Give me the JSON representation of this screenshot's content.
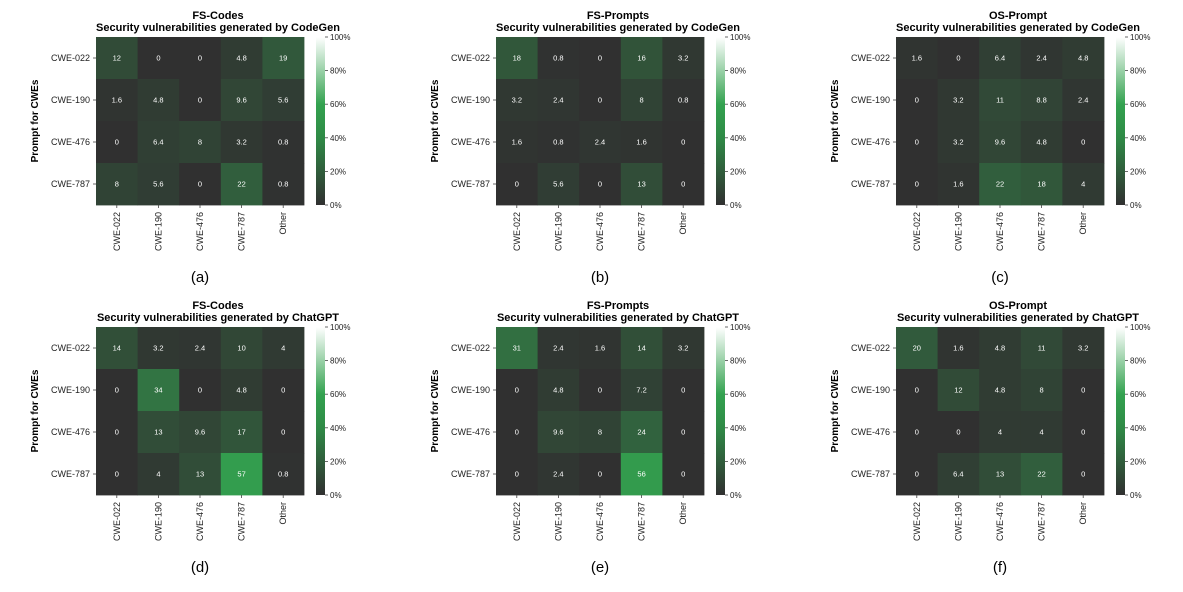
{
  "chart_data": [
    {
      "type": "heatmap",
      "caption": "(a)",
      "title": "FS-Codes",
      "subtitle": "Security vulnerabilities generated by CodeGen",
      "ylabel": "Prompt for CWEs",
      "rows": [
        "CWE-022",
        "CWE-190",
        "CWE-476",
        "CWE-787"
      ],
      "cols": [
        "CWE-022",
        "CWE-190",
        "CWE-476",
        "CWE-787",
        "Other"
      ],
      "values": [
        [
          12,
          0,
          0,
          4.8,
          19
        ],
        [
          1.6,
          4.8,
          0,
          9.6,
          5.6
        ],
        [
          0,
          6.4,
          8,
          3.2,
          0.8
        ],
        [
          8,
          5.6,
          0,
          22,
          0.8
        ]
      ],
      "value_range": [
        0,
        100
      ],
      "colorbar_ticks": [
        "0%",
        "20%",
        "40%",
        "60%",
        "80%",
        "100%"
      ]
    },
    {
      "type": "heatmap",
      "caption": "(b)",
      "title": "FS-Prompts",
      "subtitle": "Security vulnerabilities generated by CodeGen",
      "ylabel": "Prompt for CWEs",
      "rows": [
        "CWE-022",
        "CWE-190",
        "CWE-476",
        "CWE-787"
      ],
      "cols": [
        "CWE-022",
        "CWE-190",
        "CWE-476",
        "CWE-787",
        "Other"
      ],
      "values": [
        [
          18,
          0.8,
          0,
          16,
          3.2
        ],
        [
          3.2,
          2.4,
          0,
          8,
          0.8
        ],
        [
          1.6,
          0.8,
          2.4,
          1.6,
          0
        ],
        [
          0,
          5.6,
          0,
          13,
          0
        ]
      ],
      "value_range": [
        0,
        100
      ],
      "colorbar_ticks": [
        "0%",
        "20%",
        "40%",
        "60%",
        "80%",
        "100%"
      ]
    },
    {
      "type": "heatmap",
      "caption": "(c)",
      "title": "OS-Prompt",
      "subtitle": "Security vulnerabilities generated by CodeGen",
      "ylabel": "Prompt for CWEs",
      "rows": [
        "CWE-022",
        "CWE-190",
        "CWE-476",
        "CWE-787"
      ],
      "cols": [
        "CWE-022",
        "CWE-190",
        "CWE-476",
        "CWE-787",
        "Other"
      ],
      "values": [
        [
          1.6,
          0,
          6.4,
          2.4,
          4.8
        ],
        [
          0,
          3.2,
          11,
          8.8,
          2.4
        ],
        [
          0,
          3.2,
          9.6,
          4.8,
          0
        ],
        [
          0,
          1.6,
          22,
          18,
          4
        ]
      ],
      "value_range": [
        0,
        100
      ],
      "colorbar_ticks": [
        "0%",
        "20%",
        "40%",
        "60%",
        "80%",
        "100%"
      ]
    },
    {
      "type": "heatmap",
      "caption": "(d)",
      "title": "FS-Codes",
      "subtitle": "Security vulnerabilities generated by ChatGPT",
      "ylabel": "Prompt for CWEs",
      "rows": [
        "CWE-022",
        "CWE-190",
        "CWE-476",
        "CWE-787"
      ],
      "cols": [
        "CWE-022",
        "CWE-190",
        "CWE-476",
        "CWE-787",
        "Other"
      ],
      "values": [
        [
          14,
          3.2,
          2.4,
          10,
          4
        ],
        [
          0,
          34,
          0,
          4.8,
          0
        ],
        [
          0,
          13,
          9.6,
          17,
          0
        ],
        [
          0,
          4,
          13,
          57,
          0.8
        ]
      ],
      "value_range": [
        0,
        100
      ],
      "colorbar_ticks": [
        "0%",
        "20%",
        "40%",
        "60%",
        "80%",
        "100%"
      ]
    },
    {
      "type": "heatmap",
      "caption": "(e)",
      "title": "FS-Prompts",
      "subtitle": "Security vulnerabilities generated by ChatGPT",
      "ylabel": "Prompt for CWEs",
      "rows": [
        "CWE-022",
        "CWE-190",
        "CWE-476",
        "CWE-787"
      ],
      "cols": [
        "CWE-022",
        "CWE-190",
        "CWE-476",
        "CWE-787",
        "Other"
      ],
      "values": [
        [
          31,
          2.4,
          1.6,
          14,
          3.2
        ],
        [
          0,
          4.8,
          0,
          7.2,
          0
        ],
        [
          0,
          9.6,
          8,
          24,
          0
        ],
        [
          0,
          2.4,
          0,
          56,
          0
        ]
      ],
      "value_range": [
        0,
        100
      ],
      "colorbar_ticks": [
        "0%",
        "20%",
        "40%",
        "60%",
        "80%",
        "100%"
      ]
    },
    {
      "type": "heatmap",
      "caption": "(f)",
      "title": "OS-Prompt",
      "subtitle": "Security vulnerabilities generated by ChatGPT",
      "ylabel": "Prompt for CWEs",
      "rows": [
        "CWE-022",
        "CWE-190",
        "CWE-476",
        "CWE-787"
      ],
      "cols": [
        "CWE-022",
        "CWE-190",
        "CWE-476",
        "CWE-787",
        "Other"
      ],
      "values": [
        [
          20,
          1.6,
          4.8,
          11,
          3.2
        ],
        [
          0,
          12,
          4.8,
          8,
          0
        ],
        [
          0,
          0,
          4,
          4,
          0
        ],
        [
          0,
          6.4,
          13,
          22,
          0
        ]
      ],
      "value_range": [
        0,
        100
      ],
      "colorbar_ticks": [
        "0%",
        "20%",
        "40%",
        "60%",
        "80%",
        "100%"
      ]
    }
  ],
  "colors": {
    "low": "#303030",
    "mid": "#33a24f",
    "high": "#ffffff"
  }
}
